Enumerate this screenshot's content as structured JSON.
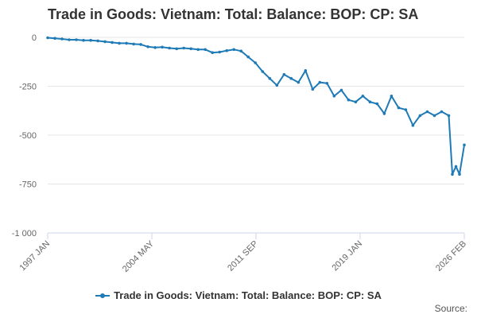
{
  "chart_data": {
    "type": "line",
    "title": "Trade in Goods: Vietnam: Total: Balance: BOP: CP: SA",
    "xlabel": "",
    "ylabel": "",
    "ylim": [
      -1000,
      0
    ],
    "yticks": [
      0,
      -250,
      -500,
      -750,
      -1000
    ],
    "ytick_labels": [
      "0",
      "-250",
      "-500",
      "-750",
      "-1 000"
    ],
    "xlim": [
      "1997-01",
      "2026-02"
    ],
    "xtick_labels": [
      "1997 JAN",
      "2004 MAY",
      "2011 SEP",
      "2019 JAN",
      "2026 FEB"
    ],
    "grid": true,
    "legend_position": "bottom-center",
    "series": [
      {
        "name": "Trade in Goods: Vietnam: Total: Balance: BOP: CP: SA",
        "color": "#1f7bb6",
        "frequency": "monthly",
        "x": [
          "1997-01",
          "1997-07",
          "1998-01",
          "1998-07",
          "1999-01",
          "1999-07",
          "2000-01",
          "2000-07",
          "2001-01",
          "2001-07",
          "2002-01",
          "2002-07",
          "2003-01",
          "2003-07",
          "2004-01",
          "2004-07",
          "2005-01",
          "2005-07",
          "2006-01",
          "2006-07",
          "2007-01",
          "2007-07",
          "2008-01",
          "2008-07",
          "2009-01",
          "2009-07",
          "2010-01",
          "2010-07",
          "2011-01",
          "2011-07",
          "2012-01",
          "2012-07",
          "2013-01",
          "2013-07",
          "2014-01",
          "2014-07",
          "2015-01",
          "2015-07",
          "2016-01",
          "2016-07",
          "2017-01",
          "2017-07",
          "2018-01",
          "2018-07",
          "2019-01",
          "2019-07",
          "2020-01",
          "2020-07",
          "2021-01",
          "2021-07",
          "2022-01",
          "2022-07",
          "2023-01",
          "2023-07",
          "2024-01",
          "2024-07",
          "2025-01",
          "2025-04",
          "2025-07",
          "2025-10",
          "2026-02"
        ],
        "values": [
          -2,
          -5,
          -8,
          -12,
          -12,
          -15,
          -15,
          -18,
          -22,
          -26,
          -30,
          -30,
          -34,
          -36,
          -48,
          -52,
          -50,
          -55,
          -58,
          -55,
          -58,
          -62,
          -62,
          -78,
          -75,
          -68,
          -62,
          -70,
          -100,
          -130,
          -175,
          -210,
          -245,
          -190,
          -210,
          -230,
          -170,
          -265,
          -230,
          -235,
          -300,
          -270,
          -320,
          -330,
          -300,
          -330,
          -340,
          -390,
          -300,
          -360,
          -370,
          -450,
          -400,
          -380,
          -400,
          -380,
          -400,
          -700,
          -660,
          -700,
          -550
        ]
      }
    ]
  },
  "legend": {
    "label": "Trade in Goods: Vietnam: Total: Balance: BOP: CP: SA"
  },
  "credits": {
    "text": "Source:"
  }
}
